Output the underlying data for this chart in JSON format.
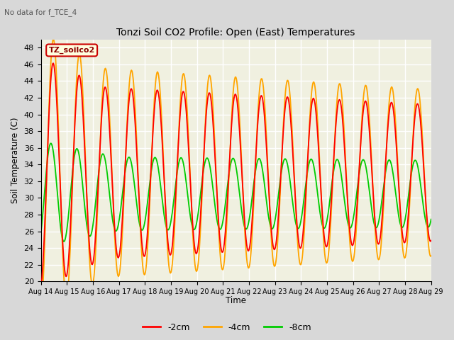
{
  "title": "Tonzi Soil CO2 Profile: Open (East) Temperatures",
  "subtitle": "No data for f_TCE_4",
  "ylabel": "Soil Temperature (C)",
  "xlabel": "Time",
  "legend_label": "TZ_soilco2",
  "series_labels": [
    "-2cm",
    "-4cm",
    "-8cm"
  ],
  "series_colors": [
    "#ff0000",
    "#ffa500",
    "#00cc00"
  ],
  "ylim": [
    20,
    49
  ],
  "yticks": [
    20,
    22,
    24,
    26,
    28,
    30,
    32,
    34,
    36,
    38,
    40,
    42,
    44,
    46,
    48
  ],
  "xtick_labels": [
    "Aug 14",
    "Aug 15",
    "Aug 16",
    "Aug 17",
    "Aug 18",
    "Aug 19",
    "Aug 20",
    "Aug 21",
    "Aug 22",
    "Aug 23",
    "Aug 24",
    "Aug 25",
    "Aug 26",
    "Aug 27",
    "Aug 28",
    "Aug 29"
  ],
  "num_days": 15,
  "bg_color": "#d8d8d8",
  "plot_bg_color": "#f0f0e0",
  "grid_color": "#ffffff"
}
